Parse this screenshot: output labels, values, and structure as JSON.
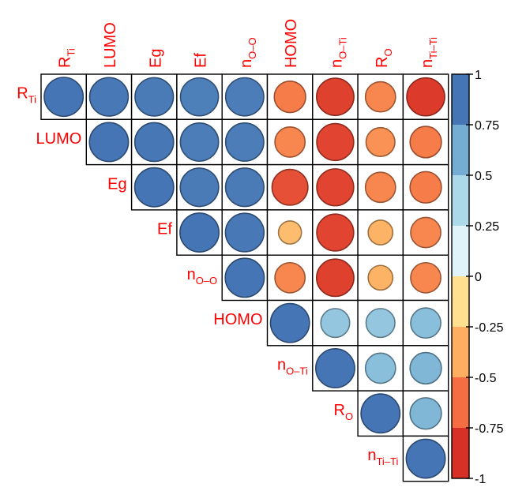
{
  "chart_data": {
    "type": "heatmap",
    "title": "",
    "variables": [
      {
        "base": "R",
        "sub": "Ti"
      },
      {
        "base": "LUMO",
        "sub": ""
      },
      {
        "base": "Eg",
        "sub": ""
      },
      {
        "base": "Ef",
        "sub": ""
      },
      {
        "base": "n",
        "sub": "O–O"
      },
      {
        "base": "HOMO",
        "sub": ""
      },
      {
        "base": "n",
        "sub": "O–Ti"
      },
      {
        "base": "R",
        "sub": "O"
      },
      {
        "base": "n",
        "sub": "Ti–Ti"
      }
    ],
    "layout": "upper-triangle",
    "glyph": "circle",
    "matrix": [
      [
        1.0,
        0.98,
        0.97,
        0.95,
        0.96,
        -0.65,
        -0.92,
        -0.6,
        -0.95
      ],
      [
        null,
        1.0,
        0.99,
        0.96,
        0.96,
        -0.6,
        -0.9,
        -0.55,
        -0.65
      ],
      [
        null,
        null,
        1.0,
        0.97,
        0.97,
        -0.85,
        -0.9,
        -0.6,
        -0.65
      ],
      [
        null,
        null,
        null,
        1.0,
        0.98,
        -0.35,
        -0.9,
        -0.4,
        -0.6
      ],
      [
        null,
        null,
        null,
        null,
        1.0,
        -0.6,
        -0.92,
        -0.4,
        -0.6
      ],
      [
        null,
        null,
        null,
        null,
        null,
        1.0,
        0.55,
        0.55,
        0.6
      ],
      [
        null,
        null,
        null,
        null,
        null,
        null,
        1.0,
        0.6,
        0.65
      ],
      [
        null,
        null,
        null,
        null,
        null,
        null,
        null,
        1.0,
        0.65
      ],
      [
        null,
        null,
        null,
        null,
        null,
        null,
        null,
        null,
        1.0
      ]
    ],
    "colorbar": {
      "ticks": [
        "1",
        "0.75",
        "0.5",
        "0.25",
        "0",
        "-0.25",
        "-0.5",
        "-0.75",
        "-1"
      ],
      "range": [
        -1,
        1
      ],
      "colors": [
        "#d73027",
        "#f46d43",
        "#fdae61",
        "#fee090",
        "#e0f3f8",
        "#abd9e9",
        "#74add1",
        "#4575b4"
      ]
    },
    "label_color": "#ff0000"
  }
}
